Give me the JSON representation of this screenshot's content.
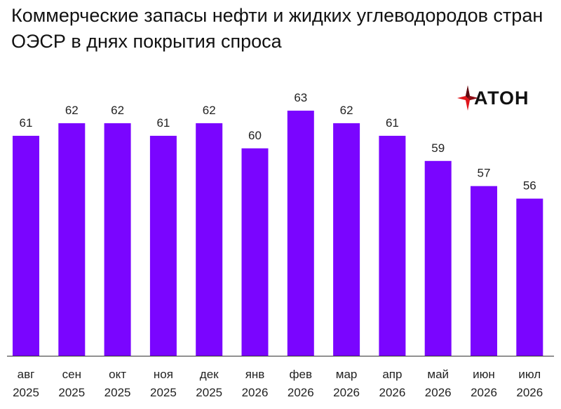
{
  "title": "Коммерческие запасы нефти и жидких углеводородов стран ОЭСР в днях покрытия спроса",
  "logo": {
    "text": "АТОН",
    "icon": "aton-logo-icon"
  },
  "colors": {
    "bar": "#7A05FF",
    "axis": "#333333",
    "logo_red": "#E0151B",
    "logo_dark": "#5A0A10"
  },
  "chart_data": {
    "type": "bar",
    "title": "Коммерческие запасы нефти и жидких углеводородов стран ОЭСР в днях покрытия спроса",
    "categories": [
      [
        "авг",
        "2025"
      ],
      [
        "сен",
        "2025"
      ],
      [
        "окт",
        "2025"
      ],
      [
        "ноя",
        "2025"
      ],
      [
        "дек",
        "2025"
      ],
      [
        "янв",
        "2026"
      ],
      [
        "фев",
        "2026"
      ],
      [
        "мар",
        "2026"
      ],
      [
        "апр",
        "2026"
      ],
      [
        "май",
        "2026"
      ],
      [
        "июн",
        "2026"
      ],
      [
        "июл",
        "2026"
      ]
    ],
    "values": [
      61,
      62,
      62,
      61,
      62,
      60,
      63,
      62,
      61,
      59,
      57,
      56
    ],
    "data_labels": [
      "61",
      "62",
      "62",
      "61",
      "62",
      "60",
      "63",
      "62",
      "61",
      "59",
      "57",
      "56"
    ],
    "ylim": [
      43.5,
      64
    ],
    "grid": false,
    "legend": "none",
    "xlabel": "",
    "ylabel": ""
  }
}
